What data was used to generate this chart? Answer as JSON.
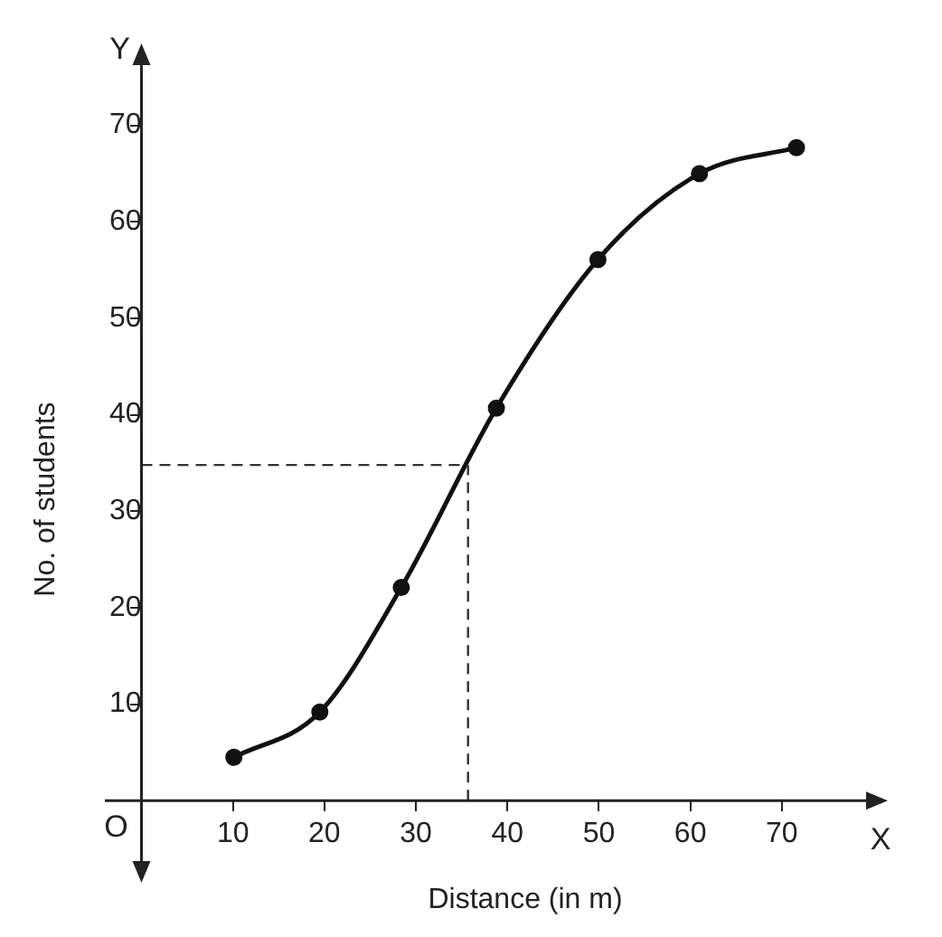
{
  "chart_data": {
    "type": "line",
    "xlabel": "Distance (in m)",
    "ylabel": "No. of students",
    "x": [
      10.1,
      19.5,
      28.4,
      38.8,
      49.9,
      61,
      71.6
    ],
    "series": [
      {
        "color": "#111111",
        "values": [
          4.5,
          9.2,
          22.1,
          40.7,
          56.1,
          65.0,
          67.7
        ]
      }
    ],
    "xlim": [
      -4,
      80
    ],
    "ylim": [
      -7,
      77
    ],
    "xticks": [
      10,
      20,
      30,
      40,
      50,
      60,
      70
    ],
    "yticks": [
      10,
      20,
      30,
      40,
      50,
      60,
      70
    ],
    "grid": false,
    "legend": false,
    "marker": "circle",
    "line_style": "solid",
    "ref_lines": [
      {
        "axis": "x",
        "value": 35.7,
        "line_style": "dashed",
        "color": "#333333"
      },
      {
        "axis": "y",
        "value": 34.8,
        "line_style": "dashed",
        "color": "#333333"
      }
    ],
    "annotations": [
      "O",
      "X",
      "Y"
    ]
  }
}
